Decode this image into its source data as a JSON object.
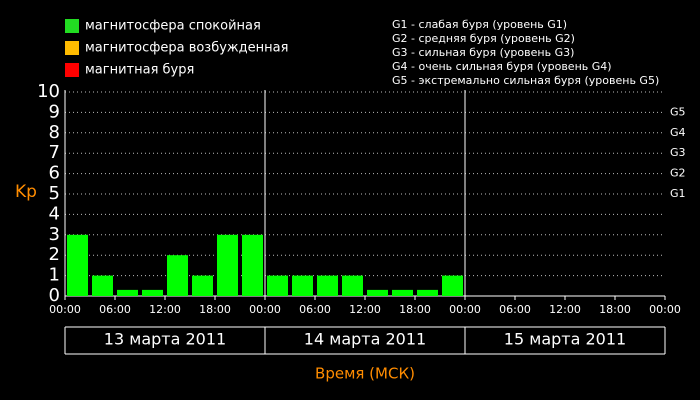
{
  "chart_data": {
    "type": "bar",
    "legend": [
      {
        "label": "магнитосфера спокойная",
        "color": "#22dd22"
      },
      {
        "label": "магнитосфера возбужденная",
        "color": "#ffbb00"
      },
      {
        "label": "магнитная буря",
        "color": "#ff0000"
      }
    ],
    "storm_levels": [
      "G1 - слабая буря (уровень G1)",
      "G2 - средняя буря (уровень G2)",
      "G3 - сильная буря (уровень G3)",
      "G4 - очень сильная буря (уровень G4)",
      "G5 - экстремально сильная буря (уровень G5)"
    ],
    "ylabel": "Kp",
    "xlabel": "Время (МСК)",
    "color": "#00ff00",
    "x": [
      0,
      3,
      6,
      9,
      12,
      15,
      18,
      21,
      24,
      27,
      30,
      33,
      36,
      39,
      42,
      45
    ],
    "values": [
      3,
      1,
      0.3,
      0.3,
      2,
      1,
      3,
      3,
      1,
      1,
      1,
      1,
      0.3,
      0.3,
      0.3,
      1
    ],
    "xlim": [
      0,
      72
    ],
    "xticks": [
      {
        "value": 0,
        "label": "00:00"
      },
      {
        "value": 6,
        "label": "06:00"
      },
      {
        "value": 12,
        "label": "12:00"
      },
      {
        "value": 18,
        "label": "18:00"
      },
      {
        "value": 24,
        "label": "00:00"
      },
      {
        "value": 30,
        "label": "06:00"
      },
      {
        "value": 36,
        "label": "12:00"
      },
      {
        "value": 42,
        "label": "18:00"
      },
      {
        "value": 48,
        "label": "00:00"
      },
      {
        "value": 54,
        "label": "06:00"
      },
      {
        "value": 60,
        "label": "12:00"
      },
      {
        "value": 66,
        "label": "18:00"
      },
      {
        "value": 72,
        "label": "00:00"
      }
    ],
    "ylim": [
      0,
      10
    ],
    "yticks": [
      0,
      1,
      2,
      3,
      4,
      5,
      6,
      7,
      8,
      9,
      10
    ],
    "y2ticks": [
      {
        "value": 5,
        "label": "G1"
      },
      {
        "value": 6,
        "label": "G2"
      },
      {
        "value": 7,
        "label": "G3"
      },
      {
        "value": 8,
        "label": "G4"
      },
      {
        "value": 9,
        "label": "G5"
      }
    ],
    "days": [
      {
        "label": "13 марта 2011",
        "start": 0,
        "end": 24
      },
      {
        "label": "14 марта 2011",
        "start": 24,
        "end": 48
      },
      {
        "label": "15 марта 2011",
        "start": 48,
        "end": 72
      }
    ],
    "grid": true
  }
}
